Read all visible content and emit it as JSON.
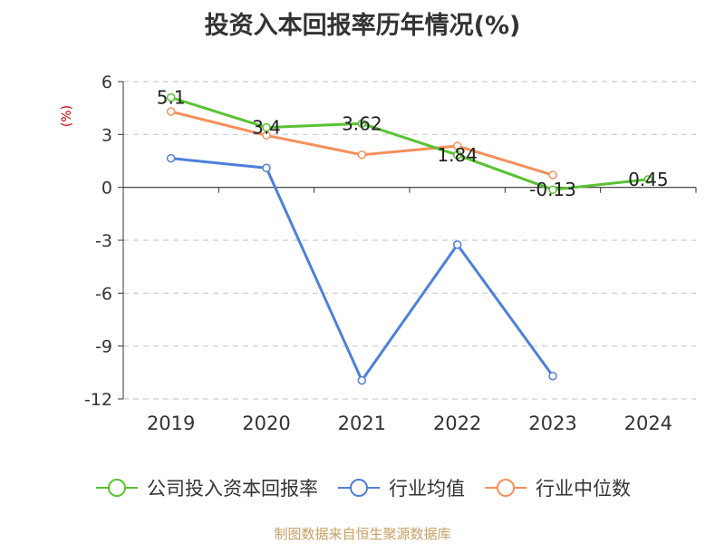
{
  "chart_data": {
    "type": "line",
    "title": "投资入本回报率历年情况(%)",
    "ylabel": "(%)",
    "categories": [
      "2019",
      "2020",
      "2021",
      "2022",
      "2023",
      "2024"
    ],
    "ylim": [
      -12,
      6
    ],
    "yticks": [
      6,
      3,
      0,
      -3,
      -6,
      -9,
      -12
    ],
    "grid": true,
    "legend_position": "bottom",
    "series": [
      {
        "name": "公司投入资本回报率",
        "color": "#5ac234",
        "values": [
          5.1,
          3.4,
          3.62,
          1.84,
          -0.13,
          0.45
        ],
        "labels": [
          "5.1",
          "3.4",
          "3.62",
          "1.84",
          "-0.13",
          "0.45"
        ]
      },
      {
        "name": "行业均值",
        "color": "#4f7fdb",
        "values": [
          1.65,
          1.1,
          -10.95,
          -3.25,
          -10.7,
          null
        ]
      },
      {
        "name": "行业中位数",
        "color": "#f78f5b",
        "values": [
          4.3,
          2.95,
          1.85,
          2.35,
          0.7,
          null
        ]
      }
    ]
  },
  "source": "制图数据来自恒生聚源数据库"
}
